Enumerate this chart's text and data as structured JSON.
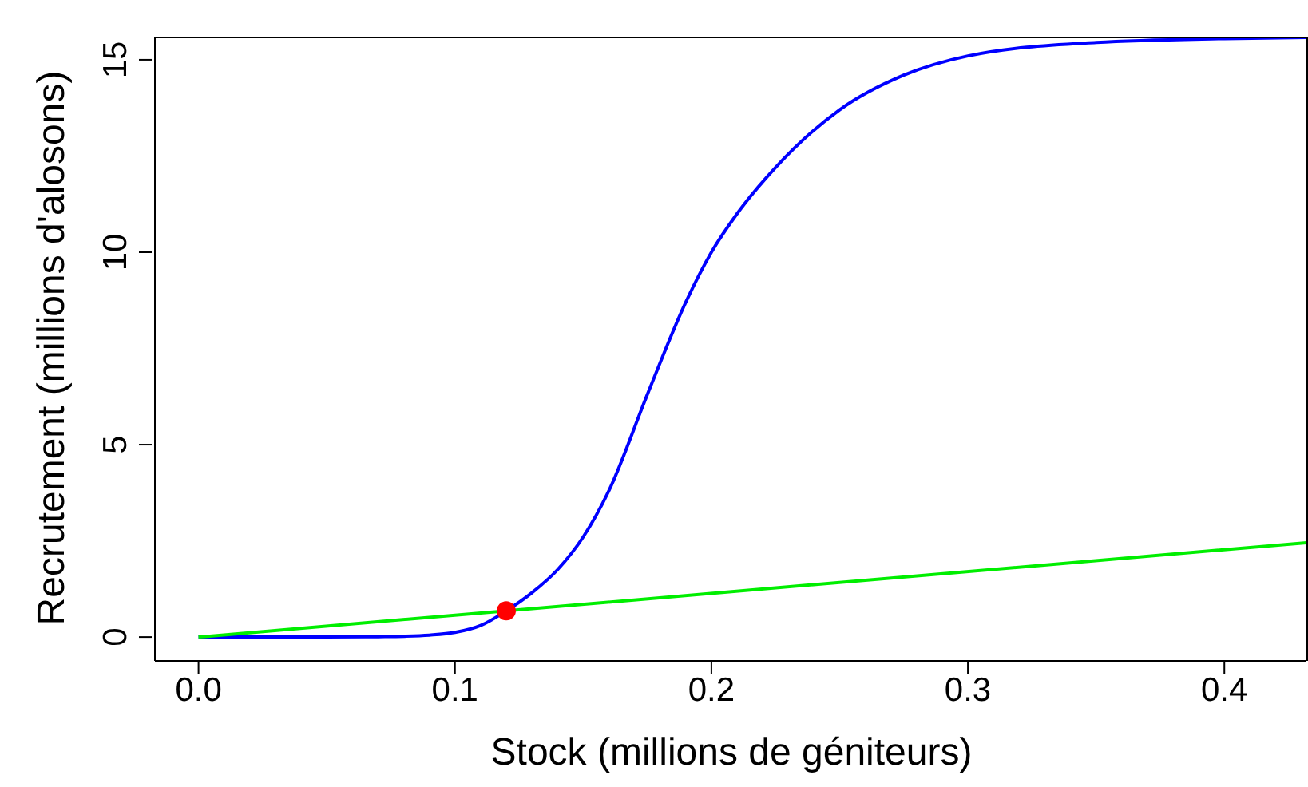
{
  "chart_data": {
    "type": "line",
    "xlabel": "Stock (millions de géniteurs)",
    "ylabel": "Recrutement (millions d'alosons)",
    "xlim": [
      -0.017,
      0.432
    ],
    "ylim": [
      -0.62,
      15.6
    ],
    "xticks": [
      {
        "value": 0,
        "label": "0.0"
      },
      0.1,
      0.2,
      0.3,
      0.4
    ],
    "yticks": [
      0,
      5,
      10,
      15
    ],
    "marker": "none",
    "line_style": "solid",
    "series": [
      {
        "color": "#0000ff",
        "x": [
          0,
          0.05,
          0.07,
          0.08,
          0.09,
          0.1,
          0.11,
          0.12,
          0.13,
          0.14,
          0.15,
          0.16,
          0.175,
          0.19,
          0.2,
          0.21,
          0.225,
          0.25,
          0.275,
          0.3,
          0.35,
          0.4,
          0.432
        ],
        "values": [
          0,
          0,
          0.01,
          0.02,
          0.05,
          0.12,
          0.3,
          0.68,
          1.15,
          1.75,
          2.6,
          3.8,
          6.3,
          8.7,
          10,
          11,
          12.2,
          13.7,
          14.6,
          15.1,
          15.45,
          15.55,
          15.58
        ]
      },
      {
        "color": "#00ee00",
        "x": [
          0,
          0.432
        ],
        "values": [
          0,
          2.45
        ]
      },
      {
        "type": "scatter",
        "color": "#ff0000",
        "marker": "circle",
        "x": [
          0.12
        ],
        "values": [
          0.68
        ]
      }
    ]
  }
}
